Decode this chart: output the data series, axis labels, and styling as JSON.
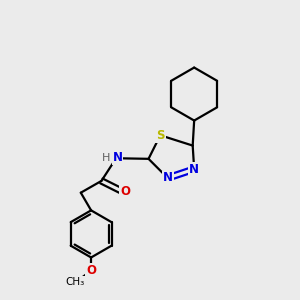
{
  "bg_color": "#ebebeb",
  "bond_color": "#000000",
  "S_color": "#b8b800",
  "N_color": "#0000e0",
  "O_color": "#dd0000",
  "H_color": "#606060",
  "line_width": 1.6,
  "fig_width": 3.0,
  "fig_height": 3.0,
  "dpi": 100,
  "xlim": [
    0,
    10
  ],
  "ylim": [
    0,
    10
  ]
}
